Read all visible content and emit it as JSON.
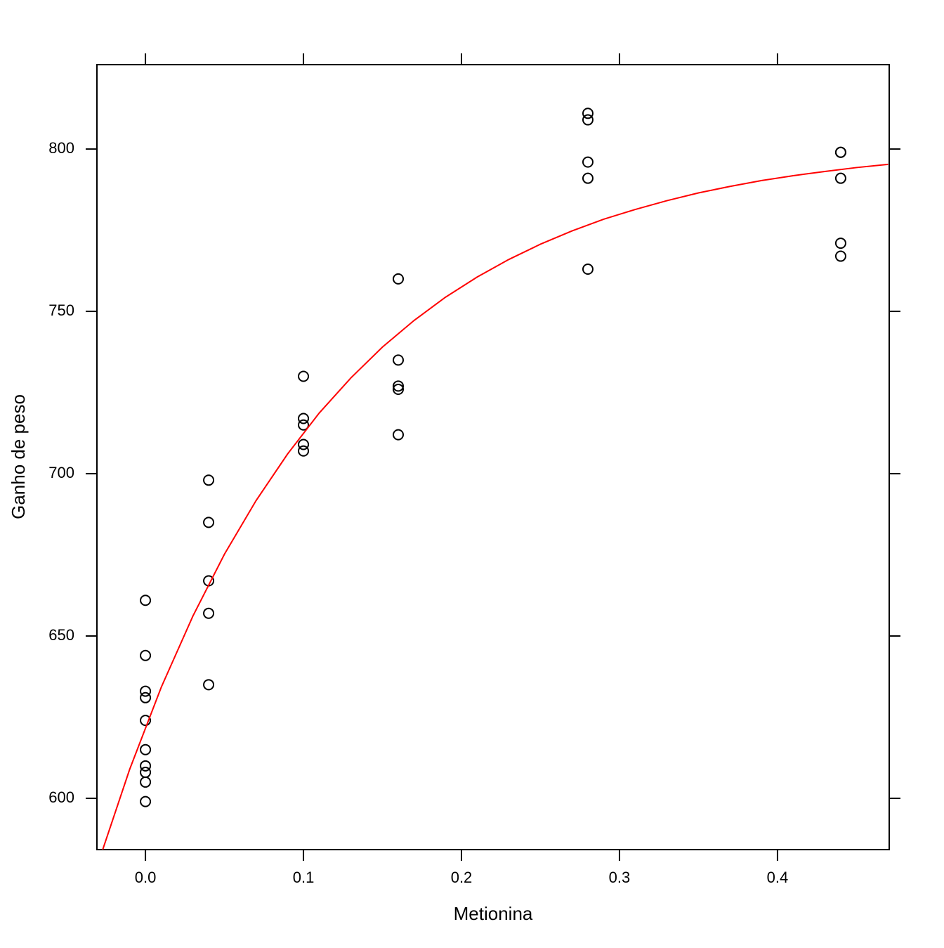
{
  "chart_data": {
    "type": "scatter",
    "x_label": "Metionina",
    "y_label": "Ganho de peso",
    "x": [
      0,
      0,
      0,
      0,
      0,
      0,
      0,
      0,
      0,
      0,
      0.04,
      0.04,
      0.04,
      0.04,
      0.04,
      0.1,
      0.1,
      0.1,
      0.1,
      0.1,
      0.16,
      0.16,
      0.16,
      0.16,
      0.16,
      0.28,
      0.28,
      0.28,
      0.28,
      0.28,
      0.44,
      0.44,
      0.44,
      0.44,
      0.44
    ],
    "y": [
      661,
      644,
      633,
      631,
      624,
      615,
      610,
      608,
      605,
      599,
      698,
      685,
      667,
      657,
      635,
      730,
      717,
      715,
      709,
      707,
      760,
      735,
      727,
      726,
      712,
      811,
      809,
      796,
      791,
      763,
      799,
      799,
      791,
      771,
      767
    ],
    "color": "black",
    "curve": {
      "color": "red",
      "x": [
        -0.03,
        -0.01,
        0.01,
        0.03,
        0.05,
        0.07,
        0.09,
        0.11,
        0.13,
        0.15,
        0.17,
        0.19,
        0.21,
        0.23,
        0.25,
        0.27,
        0.29,
        0.31,
        0.33,
        0.35,
        0.37,
        0.39,
        0.41,
        0.43,
        0.45,
        0.47
      ],
      "y": [
        579.9,
        608.9,
        634.2,
        656.1,
        675.2,
        691.7,
        706.1,
        718.7,
        729.5,
        739.0,
        747.2,
        754.4,
        760.6,
        766.0,
        770.7,
        774.8,
        778.4,
        781.4,
        784.1,
        786.5,
        788.5,
        790.3,
        791.8,
        793.1,
        794.3,
        795.3
      ]
    },
    "xlim": [
      -0.0307,
      0.4707
    ],
    "ylim": [
      584.2,
      826.0
    ],
    "xticks": [
      {
        "value": 0,
        "label": "0.0"
      },
      0.1,
      0.2,
      0.3,
      0.4
    ],
    "yticks": [
      600,
      650,
      700,
      750,
      800
    ]
  }
}
